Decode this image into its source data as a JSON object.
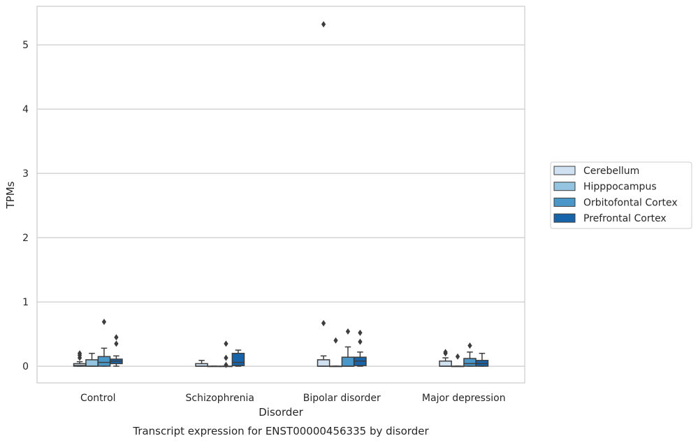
{
  "chart_data": {
    "type": "boxplot",
    "title": "",
    "caption": "Transcript expression for ENST00000456335 by disorder",
    "xlabel": "Disorder",
    "ylabel": "TPMs",
    "ylim": [
      -0.26,
      5.6
    ],
    "yticks": [
      0,
      1,
      2,
      3,
      4,
      5
    ],
    "grid": "horizontal",
    "legend_placement": "right",
    "categories": [
      "Control",
      "Schizophrenia",
      "Bipolar disorder",
      "Major depression"
    ],
    "series": [
      {
        "name": "Cerebellum",
        "color": "#d0e1f2",
        "boxes": [
          {
            "whislo": 0.0,
            "q1": 0.0,
            "med": 0.01,
            "q3": 0.04,
            "whishi": 0.07,
            "fliers": [
              0.13,
              0.17,
              0.2
            ]
          },
          {
            "whislo": 0.0,
            "q1": 0.0,
            "med": 0.0,
            "q3": 0.04,
            "whishi": 0.09,
            "fliers": []
          },
          {
            "whislo": 0.0,
            "q1": 0.0,
            "med": 0.0,
            "q3": 0.1,
            "whishi": 0.16,
            "fliers": [
              0.67,
              5.32
            ]
          },
          {
            "whislo": 0.0,
            "q1": 0.0,
            "med": 0.0,
            "q3": 0.08,
            "whishi": 0.13,
            "fliers": [
              0.2,
              0.22
            ]
          }
        ]
      },
      {
        "name": "Hipppocampus",
        "color": "#94c4df",
        "boxes": [
          {
            "whislo": 0.0,
            "q1": 0.0,
            "med": 0.0,
            "q3": 0.1,
            "whishi": 0.2,
            "fliers": []
          },
          {
            "whislo": 0.0,
            "q1": 0.0,
            "med": 0.0,
            "q3": 0.0,
            "whishi": 0.0,
            "fliers": []
          },
          {
            "whislo": 0.0,
            "q1": 0.0,
            "med": 0.0,
            "q3": 0.0,
            "whishi": 0.0,
            "fliers": [
              0.4
            ]
          },
          {
            "whislo": 0.0,
            "q1": 0.0,
            "med": 0.0,
            "q3": 0.0,
            "whishi": 0.0,
            "fliers": [
              0.15
            ]
          }
        ]
      },
      {
        "name": "Orbitofontal Cortex",
        "color": "#4a98c9",
        "boxes": [
          {
            "whislo": 0.0,
            "q1": 0.0,
            "med": 0.06,
            "q3": 0.15,
            "whishi": 0.28,
            "fliers": [
              0.69
            ]
          },
          {
            "whislo": 0.0,
            "q1": 0.0,
            "med": 0.0,
            "q3": 0.0,
            "whishi": 0.0,
            "fliers": [
              0.02,
              0.13,
              0.35
            ]
          },
          {
            "whislo": 0.0,
            "q1": 0.0,
            "med": 0.0,
            "q3": 0.14,
            "whishi": 0.3,
            "fliers": [
              0.54
            ]
          },
          {
            "whislo": 0.0,
            "q1": 0.0,
            "med": 0.04,
            "q3": 0.12,
            "whishi": 0.22,
            "fliers": [
              0.32
            ]
          }
        ]
      },
      {
        "name": "Prefrontal Cortex",
        "color": "#1764ab",
        "boxes": [
          {
            "whislo": 0.0,
            "q1": 0.04,
            "med": 0.08,
            "q3": 0.11,
            "whishi": 0.16,
            "fliers": [
              0.35,
              0.45
            ]
          },
          {
            "whislo": 0.0,
            "q1": 0.01,
            "med": 0.06,
            "q3": 0.2,
            "whishi": 0.25,
            "fliers": []
          },
          {
            "whislo": 0.0,
            "q1": 0.01,
            "med": 0.08,
            "q3": 0.14,
            "whishi": 0.22,
            "fliers": [
              0.38,
              0.52
            ]
          },
          {
            "whislo": 0.0,
            "q1": 0.0,
            "med": 0.04,
            "q3": 0.09,
            "whishi": 0.2,
            "fliers": []
          }
        ]
      }
    ]
  }
}
